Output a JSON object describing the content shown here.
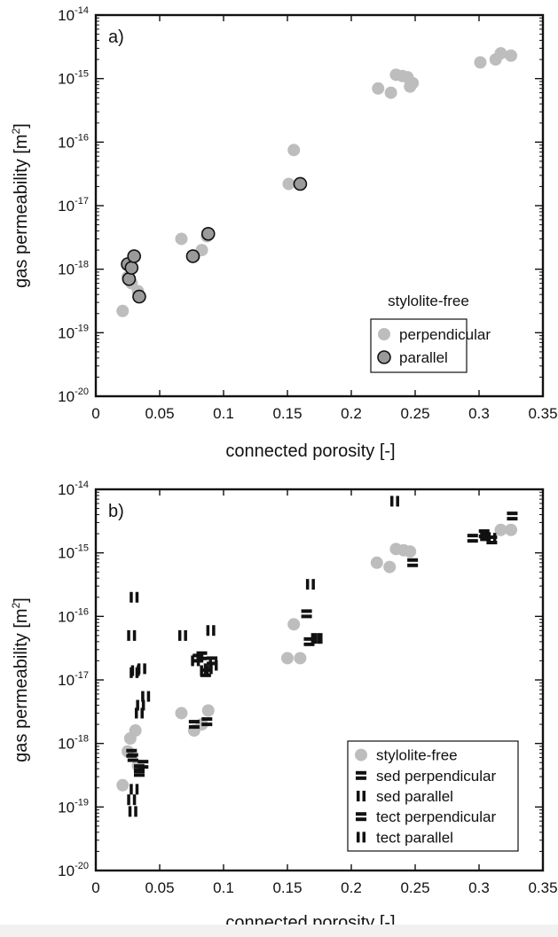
{
  "chart_data": [
    {
      "type": "scatter",
      "panel_label": "a)",
      "xlabel": "connected porosity [-]",
      "ylabel_main": "gas permeability [m",
      "ylabel_sup": "2",
      "ylabel_close": "]",
      "x_scale": "linear",
      "y_scale": "log",
      "xlim": [
        0,
        0.35
      ],
      "ylim": [
        1e-20,
        1e-14
      ],
      "x_ticks": [
        {
          "value": 0,
          "label": "0"
        },
        {
          "value": 0.05,
          "label": "0.05"
        },
        {
          "value": 0.1,
          "label": "0.1"
        },
        {
          "value": 0.15,
          "label": "0.15"
        },
        {
          "value": 0.2,
          "label": "0.2"
        },
        {
          "value": 0.25,
          "label": "0.25"
        },
        {
          "value": 0.3,
          "label": "0.3"
        },
        {
          "value": 0.35,
          "label": "0.35"
        }
      ],
      "y_ticks": [
        {
          "exp": -14,
          "base": "10",
          "sup": "-14"
        },
        {
          "exp": -15,
          "base": "10",
          "sup": "-15"
        },
        {
          "exp": -16,
          "base": "10",
          "sup": "-16"
        },
        {
          "exp": -17,
          "base": "10",
          "sup": "-17"
        },
        {
          "exp": -18,
          "base": "10",
          "sup": "-18"
        },
        {
          "exp": -19,
          "base": "10",
          "sup": "-19"
        },
        {
          "exp": -20,
          "base": "10",
          "sup": "-20"
        }
      ],
      "grid": false,
      "legend_title": "stylolite-free",
      "legend_position": "lower-right",
      "series": [
        {
          "name": "perpendicular",
          "marker": "circle",
          "color": "#bdbdbd",
          "edge": "none",
          "points": [
            [
              0.021,
              2.2e-19
            ],
            [
              0.025,
              7.5e-19
            ],
            [
              0.028,
              6e-19
            ],
            [
              0.033,
              4.5e-19
            ],
            [
              0.067,
              3e-18
            ],
            [
              0.077,
              1.6e-18
            ],
            [
              0.083,
              2e-18
            ],
            [
              0.087,
              3.3e-18
            ],
            [
              0.151,
              2.2e-17
            ],
            [
              0.155,
              7.5e-17
            ],
            [
              0.221,
              7e-16
            ],
            [
              0.231,
              6e-16
            ],
            [
              0.235,
              1.15e-15
            ],
            [
              0.24,
              1.1e-15
            ],
            [
              0.244,
              1.05e-15
            ],
            [
              0.246,
              7.5e-16
            ],
            [
              0.248,
              8.5e-16
            ],
            [
              0.301,
              1.8e-15
            ],
            [
              0.313,
              2e-15
            ],
            [
              0.317,
              2.5e-15
            ],
            [
              0.325,
              2.3e-15
            ]
          ]
        },
        {
          "name": "parallel",
          "marker": "circle",
          "color": "#9a9a9a",
          "edge": "#111111",
          "points": [
            [
              0.025,
              1.2e-18
            ],
            [
              0.026,
              7e-19
            ],
            [
              0.028,
              1.05e-18
            ],
            [
              0.03,
              1.6e-18
            ],
            [
              0.034,
              3.7e-19
            ],
            [
              0.076,
              1.6e-18
            ],
            [
              0.088,
              3.6e-18
            ],
            [
              0.16,
              2.2e-17
            ]
          ]
        }
      ]
    },
    {
      "type": "scatter",
      "panel_label": "b)",
      "xlabel": "connected porosity [-]",
      "ylabel_main": "gas permeability [m",
      "ylabel_sup": "2",
      "ylabel_close": "]",
      "x_scale": "linear",
      "y_scale": "log",
      "xlim": [
        0,
        0.35
      ],
      "ylim": [
        1e-20,
        1e-14
      ],
      "x_ticks": [
        {
          "value": 0,
          "label": "0"
        },
        {
          "value": 0.05,
          "label": "0.05"
        },
        {
          "value": 0.1,
          "label": "0.1"
        },
        {
          "value": 0.15,
          "label": "0.15"
        },
        {
          "value": 0.2,
          "label": "0.2"
        },
        {
          "value": 0.25,
          "label": "0.25"
        },
        {
          "value": 0.3,
          "label": "0.3"
        },
        {
          "value": 0.35,
          "label": "0.35"
        }
      ],
      "y_ticks": [
        {
          "exp": -14,
          "base": "10",
          "sup": "-14"
        },
        {
          "exp": -15,
          "base": "10",
          "sup": "-15"
        },
        {
          "exp": -16,
          "base": "10",
          "sup": "-16"
        },
        {
          "exp": -17,
          "base": "10",
          "sup": "-17"
        },
        {
          "exp": -18,
          "base": "10",
          "sup": "-18"
        },
        {
          "exp": -19,
          "base": "10",
          "sup": "-19"
        },
        {
          "exp": -20,
          "base": "10",
          "sup": "-20"
        }
      ],
      "grid": false,
      "legend_position": "lower-right",
      "series": [
        {
          "name": "stylolite-free",
          "marker": "circle",
          "color": "#bdbdbd",
          "edge": "none",
          "points": [
            [
              0.021,
              2.2e-19
            ],
            [
              0.025,
              7.5e-19
            ],
            [
              0.027,
              1.2e-18
            ],
            [
              0.031,
              1.6e-18
            ],
            [
              0.033,
              4.5e-19
            ],
            [
              0.067,
              3e-18
            ],
            [
              0.077,
              1.6e-18
            ],
            [
              0.083,
              2e-18
            ],
            [
              0.088,
              3.3e-18
            ],
            [
              0.15,
              2.2e-17
            ],
            [
              0.155,
              7.5e-17
            ],
            [
              0.16,
              2.2e-17
            ],
            [
              0.22,
              7e-16
            ],
            [
              0.23,
              6e-16
            ],
            [
              0.235,
              1.15e-15
            ],
            [
              0.241,
              1.1e-15
            ],
            [
              0.246,
              1.05e-15
            ],
            [
              0.317,
              2.3e-15
            ],
            [
              0.325,
              2.3e-15
            ]
          ]
        },
        {
          "name": "sed perpendicular",
          "marker": "hbars",
          "color": "#111111",
          "points": [
            [
              0.028,
              7e-19
            ],
            [
              0.034,
              3.5e-19
            ],
            [
              0.037,
              4.7e-19
            ],
            [
              0.077,
              2e-18
            ],
            [
              0.087,
              2.2e-18
            ],
            [
              0.167,
              4e-17
            ],
            [
              0.248,
              7e-16
            ],
            [
              0.295,
              1.7e-15
            ],
            [
              0.305,
              1.8e-15
            ],
            [
              0.31,
              1.6e-15
            ],
            [
              0.326,
              3.8e-15
            ]
          ]
        },
        {
          "name": "sed parallel",
          "marker": "vbars",
          "color": "#111111",
          "points": [
            [
              0.028,
              1.3e-19
            ],
            [
              0.029,
              8.5e-20
            ],
            [
              0.03,
              2e-16
            ],
            [
              0.03,
              1.3e-17
            ],
            [
              0.034,
              3e-18
            ],
            [
              0.039,
              5.5e-18
            ],
            [
              0.068,
              5e-17
            ],
            [
              0.09,
              6e-17
            ],
            [
              0.085,
              1.4e-17
            ],
            [
              0.168,
              3.2e-16
            ],
            [
              0.172,
              4.5e-17
            ],
            [
              0.234,
              6.5e-15
            ]
          ]
        },
        {
          "name": "tect perpendicular",
          "marker": "hbars",
          "color": "#111111",
          "points": [
            [
              0.029,
              6e-19
            ],
            [
              0.034,
              4e-19
            ],
            [
              0.08,
              2.2e-17
            ],
            [
              0.083,
              2.4e-17
            ],
            [
              0.086,
              1.3e-17
            ],
            [
              0.091,
              2e-17
            ],
            [
              0.165,
              1.1e-16
            ],
            [
              0.304,
              2e-15
            ]
          ]
        },
        {
          "name": "tect parallel",
          "marker": "vbars",
          "color": "#111111",
          "points": [
            [
              0.028,
              5e-17
            ],
            [
              0.031,
              1.4e-17
            ],
            [
              0.036,
              1.5e-17
            ],
            [
              0.035,
              4e-18
            ],
            [
              0.03,
              1.9e-19
            ],
            [
              0.078,
              2e-17
            ],
            [
              0.088,
              1.5e-17
            ],
            [
              0.092,
              1.7e-17
            ],
            [
              0.174,
              4.5e-17
            ],
            [
              0.31,
              1.7e-15
            ]
          ]
        }
      ]
    }
  ]
}
